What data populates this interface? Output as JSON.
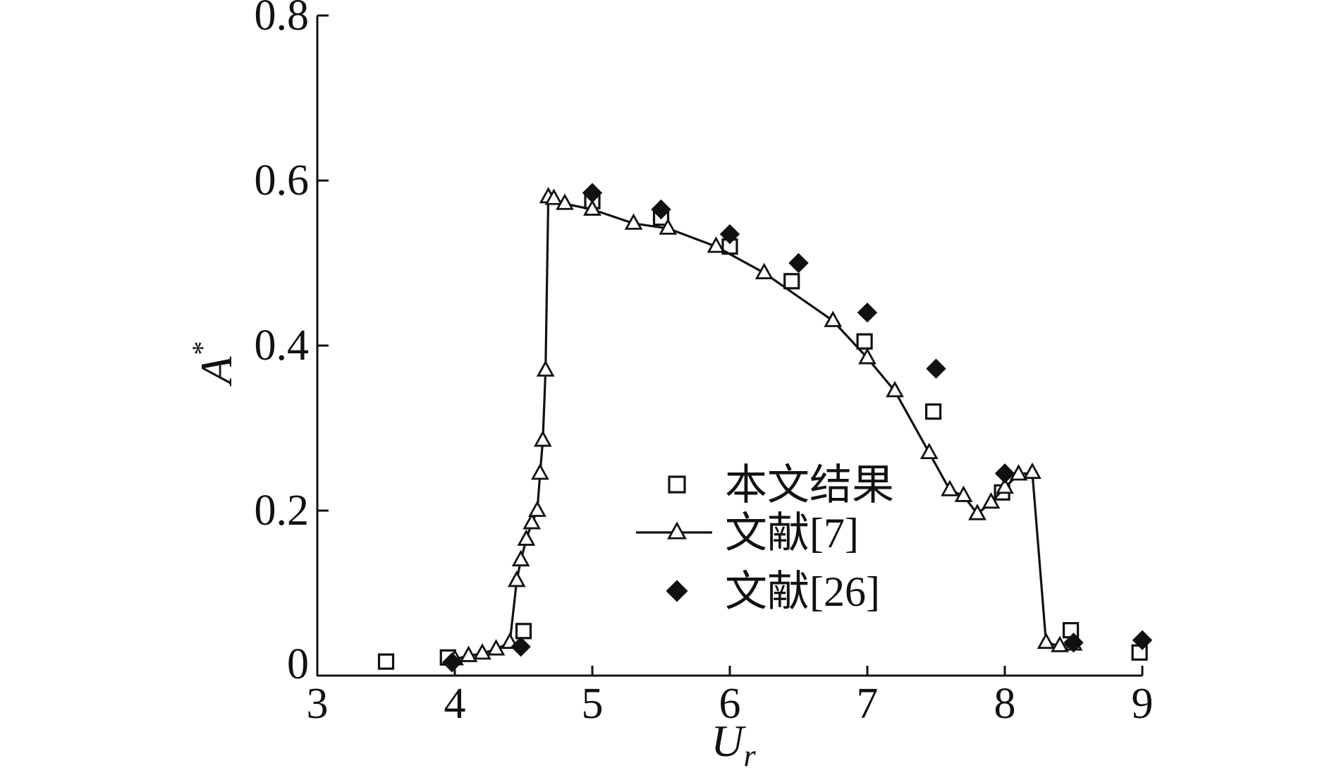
{
  "chart_data": {
    "type": "scatter",
    "xlabel": "U",
    "xlabel_sub": "r",
    "ylabel": "A",
    "ylabel_sup": "*",
    "xlim": [
      3,
      9
    ],
    "ylim": [
      0,
      0.8
    ],
    "xticks": [
      "3",
      "4",
      "5",
      "6",
      "7",
      "8",
      "9"
    ],
    "yticks": [
      "0",
      "0.2",
      "0.4",
      "0.6",
      "0.8"
    ],
    "grid": false,
    "legend_position": "center-right",
    "series": [
      {
        "name": "本文结果",
        "marker": "square-open",
        "line": false,
        "color": "#111111",
        "x": [
          3.5,
          3.95,
          4.5,
          5.0,
          5.5,
          6.0,
          6.45,
          6.98,
          7.48,
          7.98,
          8.48,
          8.98
        ],
        "y": [
          0.017,
          0.022,
          0.054,
          0.575,
          0.555,
          0.52,
          0.478,
          0.405,
          0.32,
          0.222,
          0.055,
          0.028
        ]
      },
      {
        "name": "文献[7]",
        "marker": "triangle-open",
        "line": true,
        "color": "#111111",
        "x": [
          4.0,
          4.1,
          4.2,
          4.3,
          4.4,
          4.45,
          4.48,
          4.52,
          4.56,
          4.6,
          4.62,
          4.64,
          4.66,
          4.68,
          4.72,
          4.8,
          5.0,
          5.3,
          5.55,
          5.9,
          6.25,
          6.75,
          7.0,
          7.2,
          7.45,
          7.6,
          7.7,
          7.8,
          7.9,
          8.0,
          8.1,
          8.2,
          8.3,
          8.4,
          8.5
        ],
        "y": [
          0.02,
          0.024,
          0.027,
          0.032,
          0.04,
          0.115,
          0.14,
          0.165,
          0.185,
          0.2,
          0.245,
          0.285,
          0.37,
          0.58,
          0.578,
          0.572,
          0.565,
          0.548,
          0.542,
          0.52,
          0.488,
          0.43,
          0.385,
          0.345,
          0.27,
          0.225,
          0.218,
          0.196,
          0.21,
          0.228,
          0.244,
          0.246,
          0.04,
          0.036,
          0.038
        ]
      },
      {
        "name": "文献[26]",
        "marker": "diamond-filled",
        "line": false,
        "color": "#111111",
        "x": [
          3.98,
          4.48,
          5.0,
          5.5,
          6.0,
          6.5,
          7.0,
          7.5,
          8.0,
          8.5,
          9.0
        ],
        "y": [
          0.016,
          0.035,
          0.585,
          0.565,
          0.535,
          0.5,
          0.44,
          0.372,
          0.245,
          0.04,
          0.043
        ]
      }
    ]
  }
}
